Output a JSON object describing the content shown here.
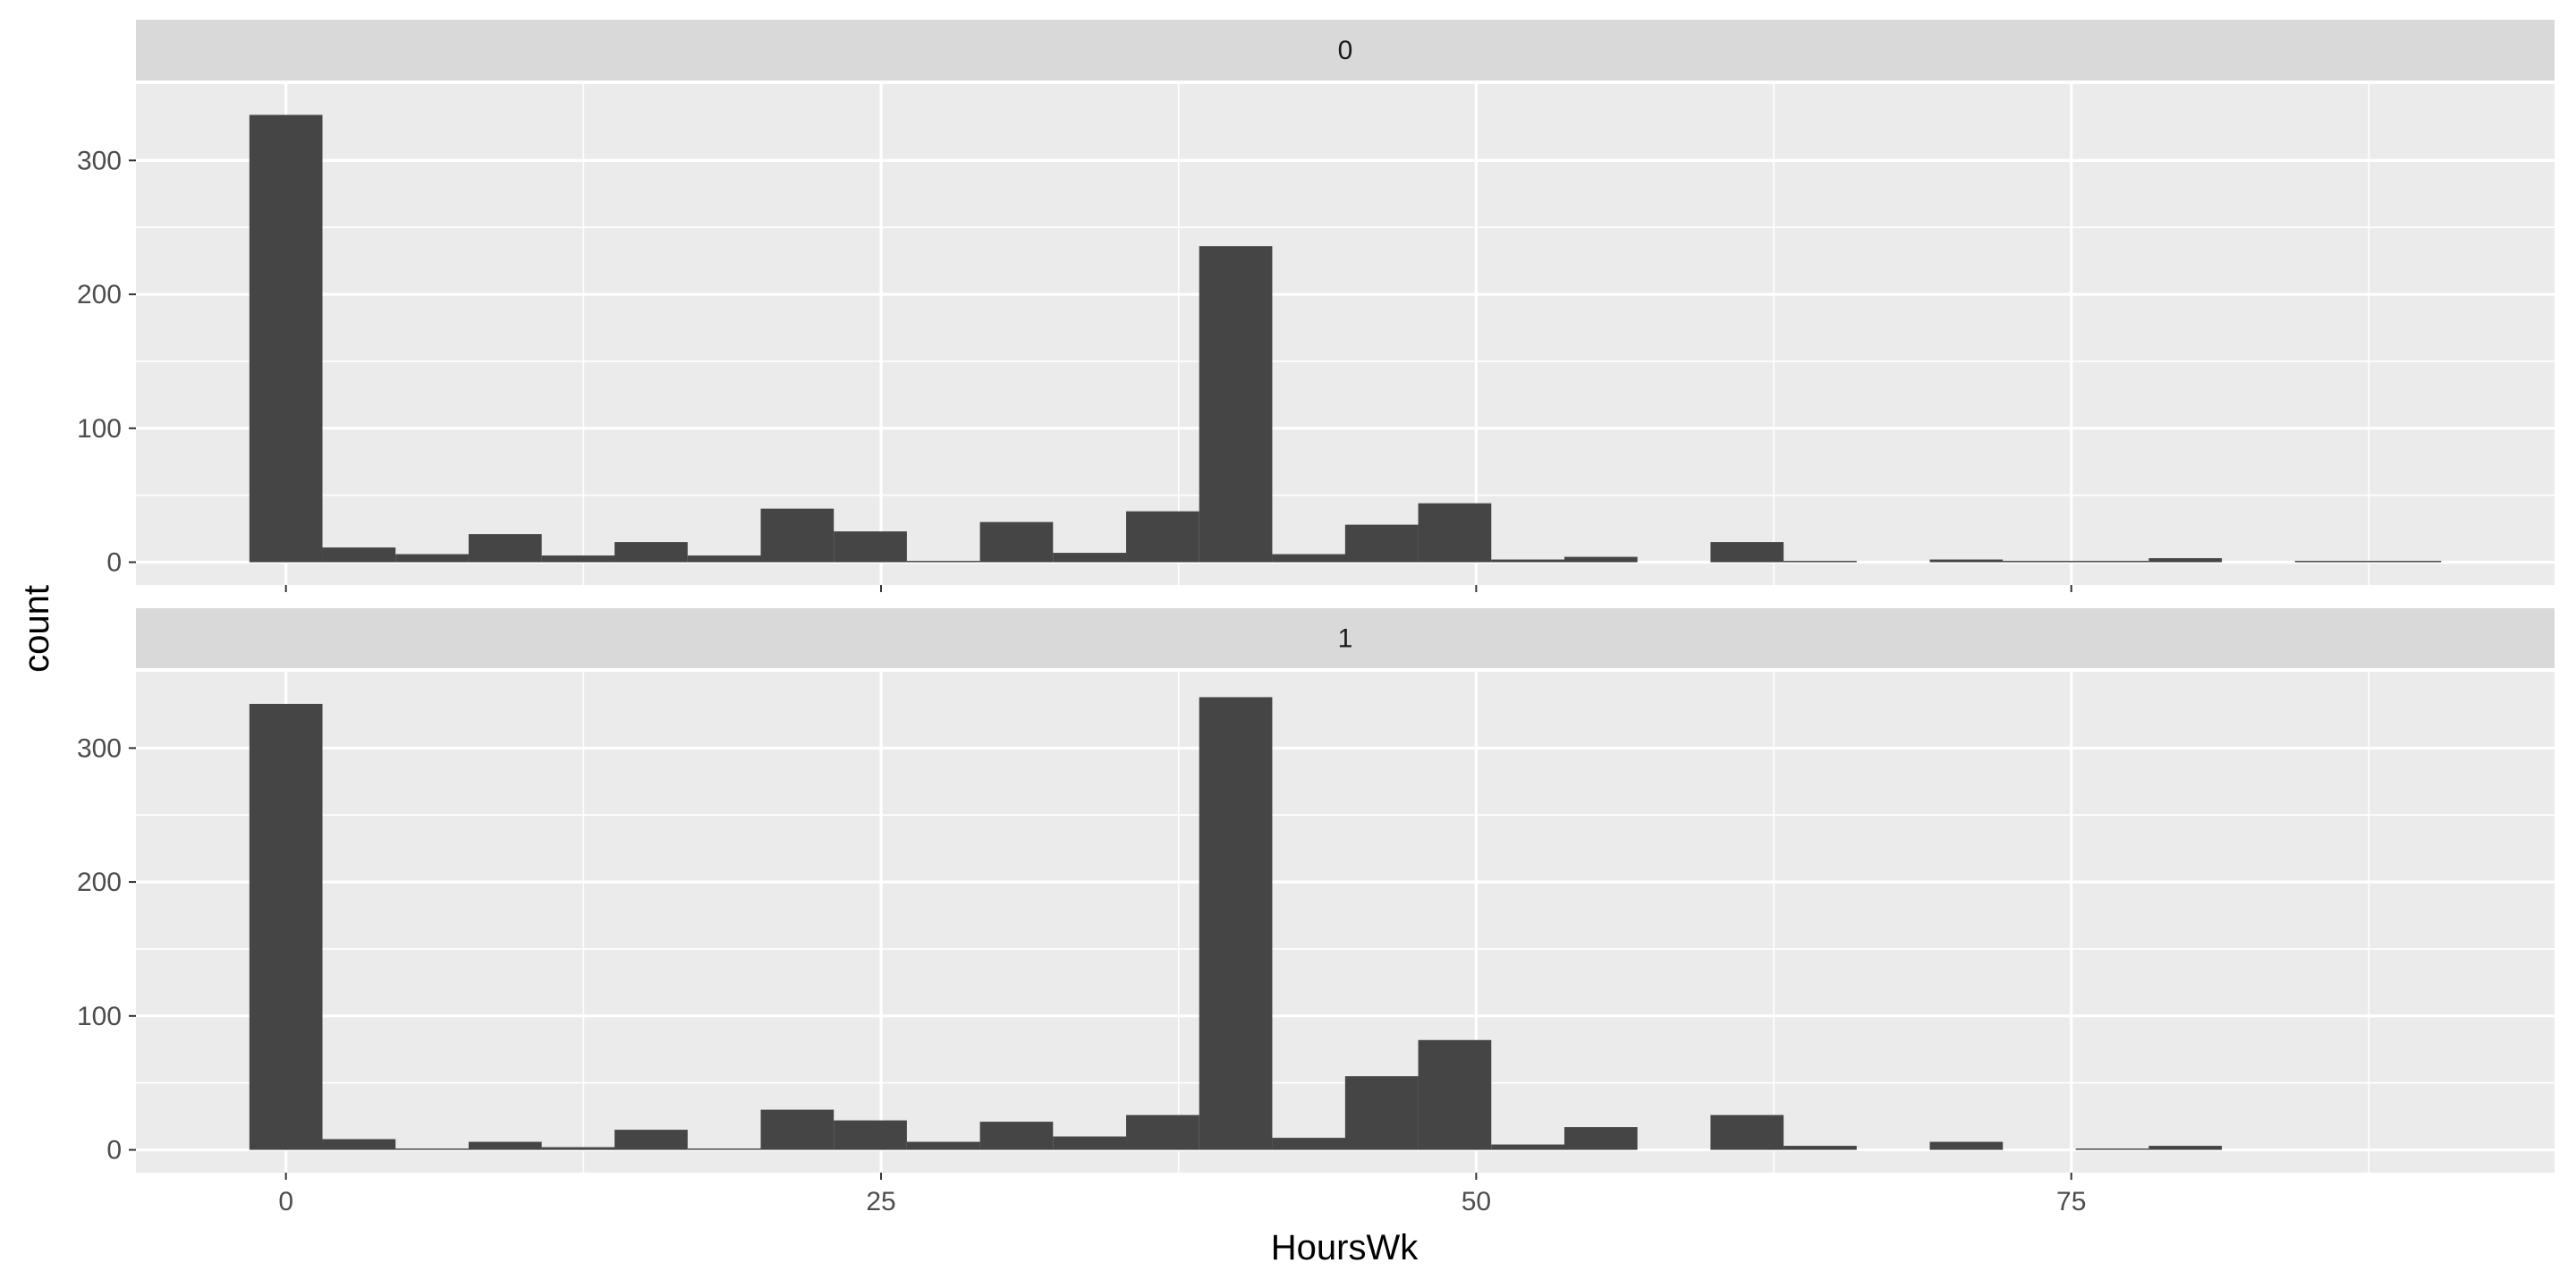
{
  "chart_data": {
    "type": "bar",
    "xlabel": "HoursWk",
    "ylabel": "count",
    "bin_width": 3.07,
    "bin_centers": [
      0,
      3.07,
      6.14,
      9.21,
      12.28,
      15.34,
      18.41,
      21.48,
      24.55,
      27.62,
      30.69,
      33.76,
      36.83,
      39.9,
      42.97,
      46.03,
      49.1,
      52.17,
      55.24,
      58.31,
      61.38,
      64.45,
      67.52,
      70.59,
      73.66,
      76.72,
      79.79,
      82.86,
      85.93,
      89.0
    ],
    "x_ticks": [
      0,
      25,
      50,
      75
    ],
    "x_tick_labels": [
      "0",
      "25",
      "50",
      "75"
    ],
    "xlim": [
      -6.3,
      95.3
    ],
    "y_ticks": [
      0,
      100,
      200,
      300
    ],
    "y_tick_labels": [
      "0",
      "100",
      "200",
      "300"
    ],
    "ylim": [
      -17,
      357
    ],
    "grid": true,
    "panels": [
      {
        "strip_label": "0",
        "values": [
          334,
          11,
          6,
          21,
          5,
          15,
          5,
          40,
          23,
          1,
          30,
          7,
          38,
          236,
          6,
          28,
          44,
          2,
          4,
          0,
          15,
          1,
          0,
          2,
          1,
          1,
          3,
          0,
          1,
          1
        ]
      },
      {
        "strip_label": "1",
        "values": [
          333,
          8,
          1,
          6,
          2,
          15,
          1,
          30,
          22,
          6,
          21,
          10,
          26,
          338,
          9,
          55,
          82,
          4,
          17,
          0,
          26,
          3,
          0,
          6,
          0,
          1,
          3,
          0,
          0,
          0
        ]
      }
    ]
  }
}
